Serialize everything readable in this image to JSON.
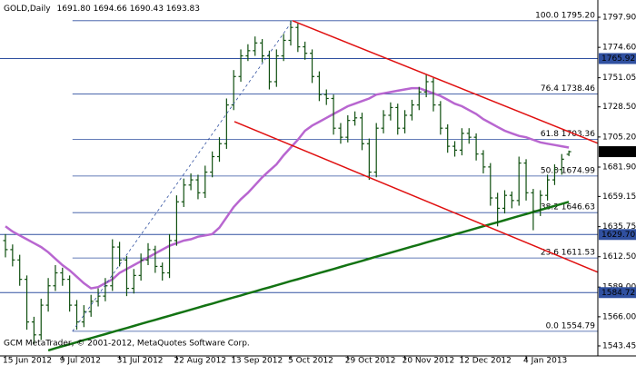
{
  "chart_data": {
    "type": "ohlc",
    "title": "GOLD,Daily",
    "last_bar_labels": [
      "1691.80",
      "1694.66",
      "1690.43",
      "1693.83"
    ],
    "footer": "GCM MetaTrader, © 2001-2012, MetaQuotes Software Corp.",
    "bar_color": "#0f4f0f",
    "categories": [
      "15 Jun 2012",
      null,
      null,
      null,
      null,
      null,
      null,
      null,
      "9 Jul 2012",
      null,
      null,
      null,
      null,
      null,
      null,
      null,
      "31 Jul 2012",
      null,
      null,
      null,
      null,
      null,
      null,
      null,
      "22 Aug 2012",
      null,
      null,
      null,
      null,
      null,
      null,
      null,
      "13 Sep 2012",
      null,
      null,
      null,
      null,
      null,
      null,
      null,
      "5 Oct 2012",
      null,
      null,
      null,
      null,
      null,
      null,
      null,
      "29 Oct 2012",
      null,
      null,
      null,
      null,
      null,
      null,
      null,
      "20 Nov 2012",
      null,
      null,
      null,
      null,
      null,
      null,
      null,
      "12 Dec 2012",
      null,
      null,
      null,
      null,
      null,
      null,
      null,
      null,
      "4 Jan 2013",
      null,
      null,
      null,
      null,
      null,
      null
    ],
    "ohlc": [
      [
        1625,
        1630,
        1612,
        1618
      ],
      [
        1618,
        1622,
        1605,
        1610
      ],
      [
        1610,
        1614,
        1590,
        1595
      ],
      [
        1595,
        1598,
        1556,
        1562
      ],
      [
        1562,
        1566,
        1545,
        1552
      ],
      [
        1552,
        1580,
        1548,
        1575
      ],
      [
        1575,
        1596,
        1570,
        1590
      ],
      [
        1590,
        1606,
        1586,
        1600
      ],
      [
        1600,
        1604,
        1590,
        1595
      ],
      [
        1595,
        1598,
        1570,
        1575
      ],
      [
        1575,
        1579,
        1556,
        1562
      ],
      [
        1562,
        1575,
        1558,
        1570
      ],
      [
        1570,
        1583,
        1566,
        1578
      ],
      [
        1578,
        1588,
        1574,
        1582
      ],
      [
        1582,
        1596,
        1578,
        1590
      ],
      [
        1590,
        1626,
        1586,
        1620
      ],
      [
        1620,
        1624,
        1605,
        1610
      ],
      [
        1610,
        1613,
        1582,
        1588
      ],
      [
        1588,
        1603,
        1584,
        1598
      ],
      [
        1598,
        1615,
        1594,
        1610
      ],
      [
        1610,
        1623,
        1606,
        1618
      ],
      [
        1618,
        1621,
        1600,
        1605
      ],
      [
        1605,
        1608,
        1594,
        1600
      ],
      [
        1600,
        1630,
        1596,
        1625
      ],
      [
        1625,
        1660,
        1621,
        1655
      ],
      [
        1655,
        1673,
        1651,
        1668
      ],
      [
        1668,
        1677,
        1664,
        1672
      ],
      [
        1672,
        1676,
        1657,
        1662
      ],
      [
        1662,
        1683,
        1658,
        1678
      ],
      [
        1678,
        1694,
        1674,
        1690
      ],
      [
        1690,
        1705,
        1686,
        1700
      ],
      [
        1700,
        1735,
        1696,
        1730
      ],
      [
        1730,
        1757,
        1726,
        1752
      ],
      [
        1752,
        1773,
        1748,
        1768
      ],
      [
        1768,
        1777,
        1764,
        1772
      ],
      [
        1772,
        1783,
        1768,
        1778
      ],
      [
        1778,
        1781,
        1763,
        1768
      ],
      [
        1768,
        1772,
        1742,
        1748
      ],
      [
        1748,
        1773,
        1744,
        1768
      ],
      [
        1768,
        1785,
        1764,
        1780
      ],
      [
        1780,
        1795.2,
        1776,
        1790
      ],
      [
        1790,
        1793,
        1771,
        1775
      ],
      [
        1775,
        1779,
        1765,
        1770
      ],
      [
        1770,
        1773,
        1747,
        1752
      ],
      [
        1752,
        1756,
        1733,
        1738
      ],
      [
        1738,
        1742,
        1730,
        1735
      ],
      [
        1735,
        1738,
        1707,
        1712
      ],
      [
        1712,
        1716,
        1700,
        1705
      ],
      [
        1705,
        1722,
        1701,
        1718
      ],
      [
        1718,
        1725,
        1714,
        1720
      ],
      [
        1720,
        1724,
        1695,
        1700
      ],
      [
        1700,
        1704,
        1672,
        1678
      ],
      [
        1678,
        1716,
        1674,
        1712
      ],
      [
        1712,
        1726,
        1708,
        1722
      ],
      [
        1722,
        1732,
        1718,
        1728
      ],
      [
        1728,
        1731,
        1707,
        1712
      ],
      [
        1712,
        1726,
        1708,
        1722
      ],
      [
        1722,
        1734,
        1718,
        1730
      ],
      [
        1730,
        1744,
        1726,
        1740
      ],
      [
        1740,
        1754,
        1736,
        1748
      ],
      [
        1748,
        1751,
        1725,
        1730
      ],
      [
        1730,
        1733,
        1707,
        1712
      ],
      [
        1712,
        1715,
        1693,
        1698
      ],
      [
        1698,
        1702,
        1690,
        1695
      ],
      [
        1695,
        1712,
        1691,
        1708
      ],
      [
        1708,
        1712,
        1700,
        1705
      ],
      [
        1705,
        1708,
        1687,
        1692
      ],
      [
        1692,
        1695,
        1677,
        1682
      ],
      [
        1682,
        1685,
        1652,
        1658
      ],
      [
        1658,
        1662,
        1636,
        1650
      ],
      [
        1650,
        1664,
        1646,
        1660
      ],
      [
        1660,
        1663,
        1650,
        1656
      ],
      [
        1656,
        1690,
        1652,
        1685
      ],
      [
        1685,
        1688,
        1656,
        1662
      ],
      [
        1662,
        1665,
        1633,
        1648
      ],
      [
        1648,
        1664,
        1644,
        1660
      ],
      [
        1660,
        1676,
        1656,
        1672
      ],
      [
        1672,
        1684,
        1668,
        1680
      ],
      [
        1680,
        1692,
        1676,
        1688
      ],
      [
        1691.8,
        1694.66,
        1690.43,
        1693.83
      ]
    ],
    "overlays": [
      {
        "color": "#b866d0",
        "values": [
          1636,
          1632,
          1629,
          1626,
          1623,
          1620,
          1616,
          1611,
          1606,
          1602,
          1597,
          1592,
          1588,
          1589,
          1592,
          1595,
          1600,
          1603,
          1606,
          1609,
          1612,
          1615,
          1618,
          1621,
          1623,
          1625,
          1626,
          1628,
          1629,
          1630,
          1635,
          1643,
          1651,
          1657,
          1662,
          1668,
          1674,
          1679,
          1684,
          1691,
          1697,
          1703,
          1710,
          1714,
          1717,
          1720,
          1723,
          1726,
          1729,
          1731,
          1733,
          1735,
          1738,
          1739,
          1740,
          1741,
          1742,
          1743,
          1743,
          1741,
          1739,
          1737,
          1734,
          1731,
          1729,
          1726,
          1723,
          1719,
          1716,
          1713,
          1710,
          1708,
          1706,
          1705,
          1703,
          1701,
          1700,
          1699,
          1698,
          1697
        ]
      },
      {
        "color": "#137313",
        "values": [
          null,
          null,
          null,
          null,
          null,
          null,
          1540,
          1541.6,
          1543.2,
          1544.7,
          1546.3,
          1547.9,
          1549.5,
          1551,
          1552.6,
          1554.2,
          1555.8,
          1557.3,
          1558.9,
          1560.5,
          1562.1,
          1563.6,
          1565.2,
          1566.8,
          1568.4,
          1569.9,
          1571.5,
          1573.1,
          1574.7,
          1576.2,
          1577.8,
          1579.4,
          1581,
          1582.5,
          1584.1,
          1585.7,
          1587.3,
          1588.8,
          1590.4,
          1592,
          1593.6,
          1595.1,
          1596.7,
          1598.3,
          1599.9,
          1601.4,
          1603,
          1604.6,
          1606.2,
          1607.7,
          1609.3,
          1610.9,
          1612.5,
          1614,
          1615.6,
          1617.2,
          1618.8,
          1620.3,
          1621.9,
          1623.5,
          1625.1,
          1626.6,
          1628.2,
          1629.8,
          1631.4,
          1632.9,
          1634.5,
          1636.1,
          1637.7,
          1639.2,
          1640.8,
          1642.4,
          1644,
          1645.5,
          1647.1,
          1648.7,
          1650.3,
          1651.8,
          1653.4,
          1655
        ]
      }
    ],
    "trendlines": [
      {
        "color": "#e01010",
        "bars": [
          40.25,
          83.1
        ],
        "prices": [
          1795.2,
          1700.2
        ]
      },
      {
        "color": "#e01010",
        "bars": [
          32.1,
          83.1
        ],
        "prices": [
          1717.1,
          1600.4
        ]
      },
      {
        "color": "#3050a0",
        "dashed": true,
        "bars": [
          9.4,
          40.25
        ],
        "prices": [
          1554.79,
          1795.2
        ]
      }
    ],
    "hlines": [
      {
        "value": 1765.92,
        "label": "1765.92"
      },
      {
        "value": 1629.7,
        "label": "1629.70"
      },
      {
        "value": 1584.72,
        "label": "1584.72"
      }
    ],
    "fib_levels": [
      {
        "value": 1795.2,
        "label": "100.0 1795.20"
      },
      {
        "value": 1738.46,
        "label": "76.4 1738.46"
      },
      {
        "value": 1703.36,
        "label": "61.8 1703.36"
      },
      {
        "value": 1674.99,
        "label": "50.0 1674.99"
      },
      {
        "value": 1646.63,
        "label": "38.2 1646.63"
      },
      {
        "value": 1611.53,
        "label": "23.6 1611.53"
      },
      {
        "value": 1554.79,
        "label": "0.0 1554.79"
      }
    ],
    "ylim": [
      1535.7,
      1811.25
    ],
    "yticks": [
      {
        "value": 1797.9,
        "label": "1797.90"
      },
      {
        "value": 1774.6,
        "label": "1774.60"
      },
      {
        "value": 1751.05,
        "label": "1751.05"
      },
      {
        "value": 1728.5,
        "label": "1728.50"
      },
      {
        "value": 1705.2,
        "label": "1705.20"
      },
      {
        "value": 1681.9,
        "label": "1681.90"
      },
      {
        "value": 1659.15,
        "label": "1659.15"
      },
      {
        "value": 1635.75,
        "label": "1635.75"
      },
      {
        "value": 1612.5,
        "label": "1612.50"
      },
      {
        "value": 1589.0,
        "label": "1589.00"
      },
      {
        "value": 1566.0,
        "label": "1566.00"
      },
      {
        "value": 1543.45,
        "label": "1543.45"
      }
    ]
  }
}
